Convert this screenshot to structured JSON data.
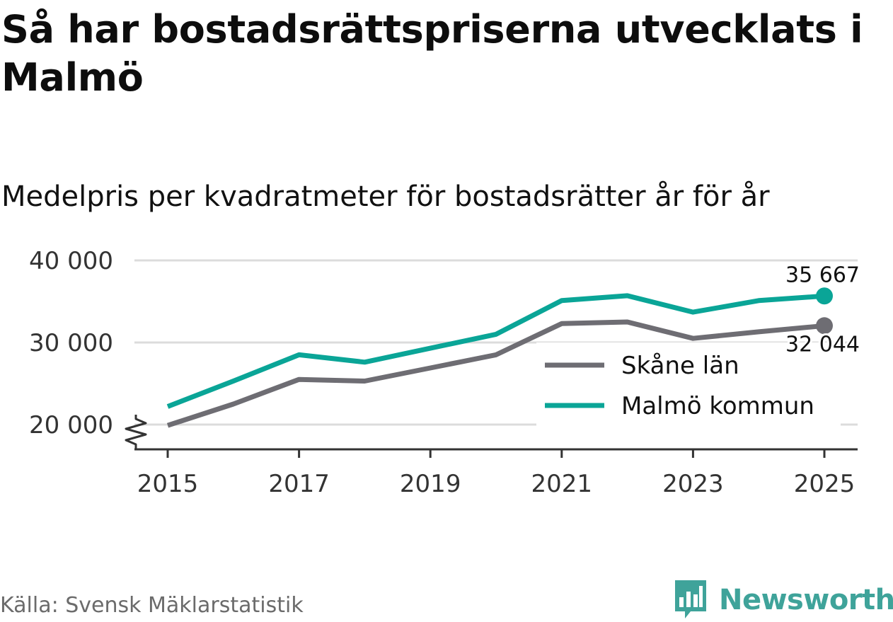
{
  "title": "Så har bostadsrättspriserna utvecklats i Malmö",
  "subtitle": "Medelpris per kvadratmeter för bostadsrätter år för år",
  "source": "Källa: Svensk Mäklarstatistik",
  "brand": {
    "name": "Newsworthy",
    "icon": "newsworthy-logo-icon",
    "color": "#3fa39a"
  },
  "chart_data": {
    "type": "line",
    "x": [
      2015,
      2016,
      2017,
      2018,
      2019,
      2020,
      2021,
      2022,
      2023,
      2024,
      2025
    ],
    "xticks": [
      "2015",
      "2017",
      "2019",
      "2021",
      "2023",
      "2025"
    ],
    "yticks": [
      "20 000",
      "30 000",
      "40 000"
    ],
    "ylim": [
      20000,
      40000
    ],
    "axis_break": true,
    "legend": "center-right",
    "series": [
      {
        "name": "Skåne län",
        "color": "#6e6d73",
        "values": [
          19900,
          22500,
          25500,
          25300,
          26900,
          28500,
          32300,
          32500,
          30500,
          31300,
          32044
        ],
        "end_label": "32 044"
      },
      {
        "name": "Malmö kommun",
        "color": "#0aa597",
        "values": [
          22200,
          25300,
          28500,
          27600,
          29300,
          31000,
          35100,
          35700,
          33700,
          35100,
          35667
        ],
        "end_label": "35 667"
      }
    ]
  }
}
